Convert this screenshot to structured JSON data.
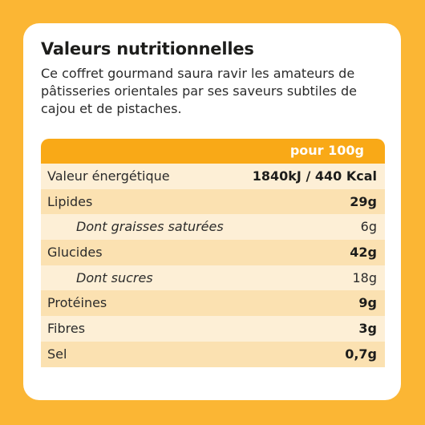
{
  "card": {
    "title": "Valeurs nutritionnelles",
    "description": "Ce coffret gourmand saura ravir les amateurs de pâtisseries orientales par ses saveurs subtiles de cajou et de pistaches."
  },
  "table": {
    "header": "pour 100g",
    "rows": [
      {
        "label": "Valeur énergétique",
        "value": "1840kJ / 440 Kcal"
      },
      {
        "label": "Lipides",
        "value": "29g"
      },
      {
        "label": "Dont graisses saturées",
        "value": "6g"
      },
      {
        "label": "Glucides",
        "value": "42g"
      },
      {
        "label": "Dont sucres",
        "value": "18g"
      },
      {
        "label": "Protéines",
        "value": "9g"
      },
      {
        "label": "Fibres",
        "value": "3g"
      },
      {
        "label": "Sel",
        "value": "0,7g"
      }
    ]
  },
  "colors": {
    "background": "#fbb634",
    "header": "#f9a917",
    "row_light": "#fdefd6",
    "row_dark": "#fbe1b1"
  }
}
